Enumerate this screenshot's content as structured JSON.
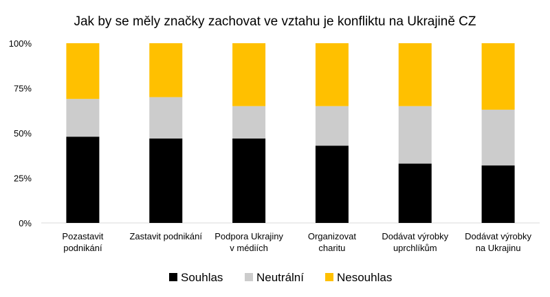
{
  "chart_data": {
    "type": "bar",
    "stacked": true,
    "title": "Jak by se měly značky zachovat ve vztahu je konfliktu na Ukrajině CZ",
    "categories": [
      [
        "Pozastavit",
        "podnikání"
      ],
      [
        "Zastavit podnikání"
      ],
      [
        "Podpora Ukrajiny",
        "v médiích"
      ],
      [
        "Organizovat",
        "charitu"
      ],
      [
        "Dodávat výrobky",
        "uprchlíkům"
      ],
      [
        "Dodávat výrobky",
        "na Ukrajinu"
      ]
    ],
    "series": [
      {
        "name": "Souhlas",
        "color": "#000000",
        "values": [
          48,
          47,
          47,
          43,
          33,
          32
        ]
      },
      {
        "name": "Neutrální",
        "color": "#cccccc",
        "values": [
          21,
          23,
          18,
          22,
          32,
          31
        ]
      },
      {
        "name": "Nesouhlas",
        "color": "#ffc000",
        "values": [
          31,
          30,
          35,
          35,
          35,
          37
        ]
      }
    ],
    "ylim": [
      0,
      100
    ],
    "yticks": [
      "0%",
      "25%",
      "50%",
      "75%",
      "100%"
    ],
    "legend_position": "bottom",
    "grid": false
  }
}
